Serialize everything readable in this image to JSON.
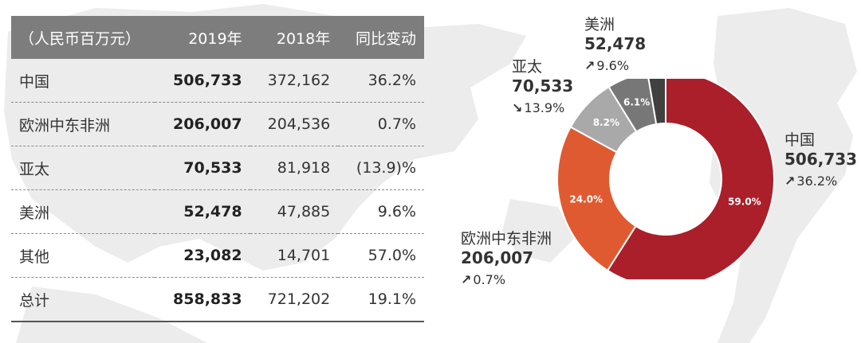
{
  "table": {
    "headers": {
      "region": "（人民币百万元）",
      "y2019": "2019年",
      "y2018": "2018年",
      "yoy": "同比变动"
    },
    "rows": [
      {
        "region": "中国",
        "y2019": "506,733",
        "y2018": "372,162",
        "yoy": "36.2%"
      },
      {
        "region": "欧洲中东非洲",
        "y2019": "206,007",
        "y2018": "204,536",
        "yoy": "0.7%"
      },
      {
        "region": "亚太",
        "y2019": "70,533",
        "y2018": "81,918",
        "yoy": "(13.9)%"
      },
      {
        "region": "美洲",
        "y2019": "52,478",
        "y2018": "47,885",
        "yoy": "9.6%"
      },
      {
        "region": "其他",
        "y2019": "23,082",
        "y2018": "14,701",
        "yoy": "57.0%"
      },
      {
        "region": "总计",
        "y2019": "858,833",
        "y2018": "721,202",
        "yoy": "19.1%"
      }
    ]
  },
  "chart_data": {
    "type": "pie",
    "series": [
      {
        "name": "中国",
        "value": 506733,
        "percent_label": "59.0%",
        "change": "36.2%",
        "direction": "up",
        "color": "#aa1f2a"
      },
      {
        "name": "欧洲中东非洲",
        "value": 206007,
        "percent_label": "24.0%",
        "change": "0.7%",
        "direction": "up",
        "color": "#e05a31"
      },
      {
        "name": "亚太",
        "value": 70533,
        "percent_label": "8.2%",
        "change": "13.9%",
        "direction": "down",
        "color": "#a9a9a9"
      },
      {
        "name": "美洲",
        "value": 52478,
        "percent_label": "6.1%",
        "change": "9.6%",
        "direction": "up",
        "color": "#777777"
      },
      {
        "name": "其他",
        "value": 23082,
        "percent_label": "",
        "change": "",
        "direction": "",
        "color": "#404040"
      }
    ],
    "external_labels": {
      "china": {
        "name": "中国",
        "value": "506,733",
        "change": "36.2%"
      },
      "emea": {
        "name": "欧洲中东非洲",
        "value": "206,007",
        "change": "0.7%"
      },
      "apac": {
        "name": "亚太",
        "value": "70,533",
        "change": "13.9%"
      },
      "americas": {
        "name": "美洲",
        "value": "52,478",
        "change": "9.6%"
      }
    },
    "arrows": {
      "up": "↗",
      "down": "↘"
    }
  }
}
